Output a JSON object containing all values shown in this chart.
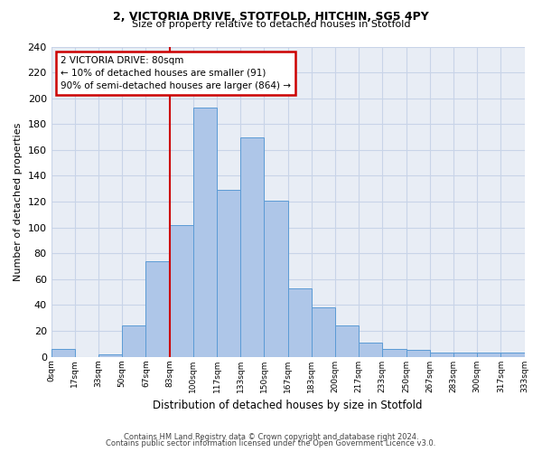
{
  "title_line1": "2, VICTORIA DRIVE, STOTFOLD, HITCHIN, SG5 4PY",
  "title_line2": "Size of property relative to detached houses in Stotfold",
  "xlabel": "Distribution of detached houses by size in Stotfold",
  "ylabel": "Number of detached properties",
  "bin_labels": [
    "0sqm",
    "17sqm",
    "33sqm",
    "50sqm",
    "67sqm",
    "83sqm",
    "100sqm",
    "117sqm",
    "133sqm",
    "150sqm",
    "167sqm",
    "183sqm",
    "200sqm",
    "217sqm",
    "233sqm",
    "250sqm",
    "267sqm",
    "283sqm",
    "300sqm",
    "317sqm",
    "333sqm"
  ],
  "bar_heights": [
    6,
    0,
    2,
    24,
    74,
    102,
    193,
    129,
    170,
    121,
    53,
    38,
    24,
    11,
    6,
    5,
    3,
    3,
    3,
    3
  ],
  "bar_color": "#aec6e8",
  "bar_edge_color": "#5b9bd5",
  "annotation_text": "2 VICTORIA DRIVE: 80sqm\n← 10% of detached houses are smaller (91)\n90% of semi-detached houses are larger (864) →",
  "annotation_box_color": "#ffffff",
  "annotation_box_edge_color": "#cc0000",
  "vline_color": "#cc0000",
  "grid_color": "#c8d4e8",
  "background_color": "#e8edf5",
  "footer_line1": "Contains HM Land Registry data © Crown copyright and database right 2024.",
  "footer_line2": "Contains public sector information licensed under the Open Government Licence v3.0.",
  "ylim": [
    0,
    240
  ],
  "yticks": [
    0,
    20,
    40,
    60,
    80,
    100,
    120,
    140,
    160,
    180,
    200,
    220,
    240
  ],
  "vline_x_index": 5
}
